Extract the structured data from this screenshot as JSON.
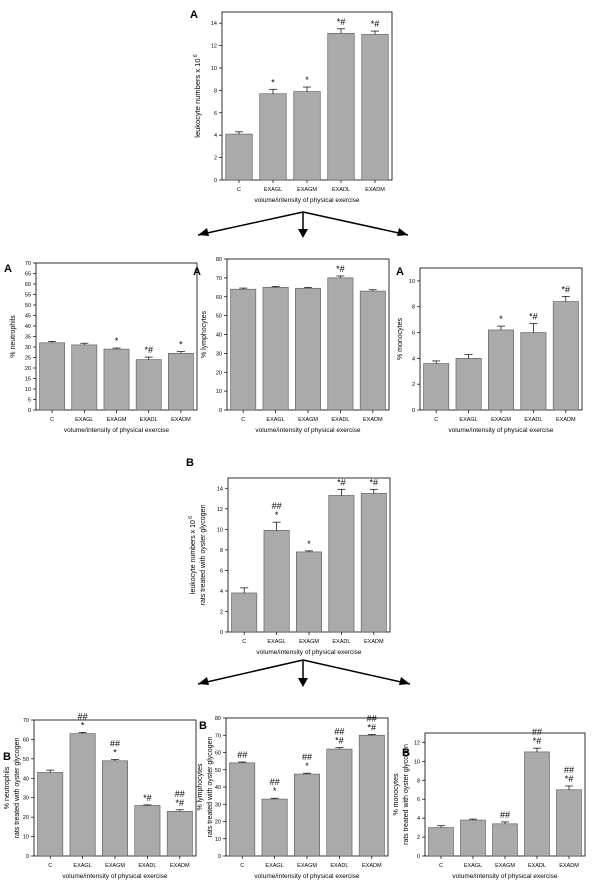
{
  "chart_data": [
    {
      "type": "bar",
      "panel_label": "A",
      "title": "",
      "ylabel": "leukocyte numbers x 10",
      "ylabel_exp": "6",
      "xlabel": "volume/intensity of physical exercise",
      "categories": [
        "C",
        "EXAGL",
        "EXAGM",
        "EXADL",
        "EXADM"
      ],
      "values": [
        4.1,
        7.7,
        7.9,
        13.1,
        13.0
      ],
      "errors": [
        0.2,
        0.4,
        0.4,
        0.4,
        0.3
      ],
      "annotations": [
        "",
        "*",
        "*",
        "*#",
        "*#"
      ],
      "ylim": [
        0,
        15
      ],
      "yticks": [
        "0",
        "2",
        "4",
        "6",
        "8",
        "10",
        "12",
        "14"
      ]
    },
    {
      "type": "bar",
      "panel_label": "A",
      "title": "",
      "ylabel": "% neutrophils",
      "xlabel": "volume/intensity of physical exercise",
      "categories": [
        "C",
        "EXAGL",
        "EXAGM",
        "EXADL",
        "EXADM"
      ],
      "values": [
        32,
        31,
        29,
        24,
        27
      ],
      "errors": [
        0.6,
        0.8,
        0.5,
        1.2,
        0.8
      ],
      "annotations": [
        "",
        "",
        "*",
        "*#",
        "*"
      ],
      "ylim": [
        0,
        70
      ],
      "yticks": [
        "0",
        "5",
        "10",
        "15",
        "20",
        "25",
        "30",
        "35",
        "40",
        "45",
        "50",
        "55",
        "60",
        "65",
        "70"
      ]
    },
    {
      "type": "bar",
      "panel_label": "A",
      "title": "",
      "ylabel": "% lymphocytes",
      "xlabel": "volume/intensity of physical exercise",
      "categories": [
        "C",
        "EXAGL",
        "EXAGM",
        "EXADL",
        "EXADM"
      ],
      "values": [
        64,
        65,
        64.5,
        70,
        63
      ],
      "errors": [
        0.6,
        0.5,
        0.5,
        1.0,
        0.7
      ],
      "annotations": [
        "",
        "",
        "",
        "*#",
        ""
      ],
      "ylim": [
        0,
        80
      ],
      "yticks": [
        "0",
        "10",
        "20",
        "30",
        "40",
        "50",
        "60",
        "70",
        "80"
      ]
    },
    {
      "type": "bar",
      "panel_label": "A",
      "title": "",
      "ylabel": "% monocytes",
      "xlabel": "volume/intensity of physical exercise",
      "categories": [
        "C",
        "EXAGL",
        "EXAGM",
        "EXADL",
        "EXADM"
      ],
      "values": [
        3.6,
        4.0,
        6.2,
        6.0,
        8.4
      ],
      "errors": [
        0.2,
        0.3,
        0.3,
        0.7,
        0.4
      ],
      "annotations": [
        "",
        "",
        "*",
        "*#",
        "*#"
      ],
      "ylim": [
        0,
        11
      ],
      "yticks": [
        "0",
        "2",
        "4",
        "6",
        "8",
        "10"
      ]
    },
    {
      "type": "bar",
      "panel_label": "B",
      "title": "",
      "ylabel": "leukocyte numbers x 10",
      "ylabel_exp": "6",
      "ylabel2": "rats treated with oyster glycogen",
      "xlabel": "volume/intensity of physical exercise",
      "categories": [
        "C",
        "EXAGL",
        "EXAGM",
        "EXADL",
        "EXADM"
      ],
      "values": [
        3.8,
        9.9,
        7.8,
        13.3,
        13.5
      ],
      "errors": [
        0.5,
        0.8,
        0.1,
        0.6,
        0.4
      ],
      "annotations": [
        "",
        "##\n*",
        "*",
        "*#",
        "*#"
      ],
      "ylim": [
        0,
        15
      ],
      "yticks": [
        "0",
        "2",
        "4",
        "6",
        "8",
        "10",
        "12",
        "14"
      ]
    },
    {
      "type": "bar",
      "panel_label": "B",
      "title": "",
      "ylabel": "% neutrophils",
      "ylabel2": "rats treated with oyster glycogen",
      "xlabel": "volume/intensity of physical exercise",
      "categories": [
        "C",
        "EXAGL",
        "EXAGM",
        "EXADL",
        "EXADM"
      ],
      "values": [
        43,
        63,
        49,
        26,
        23
      ],
      "errors": [
        1.2,
        0.6,
        0.6,
        0.3,
        0.8
      ],
      "annotations": [
        "",
        "##\n*",
        "##\n*",
        "*#",
        "##\n*#"
      ],
      "ylim": [
        0,
        70
      ],
      "yticks": [
        "0",
        "10",
        "20",
        "30",
        "40",
        "50",
        "60",
        "70"
      ]
    },
    {
      "type": "bar",
      "panel_label": "B",
      "title": "",
      "ylabel": "% lymphocytes",
      "ylabel2": "rats treated with oyster glycogen",
      "xlabel": "volume/intensity of physical exercise",
      "categories": [
        "C",
        "EXAGL",
        "EXAGM",
        "EXADL",
        "EXADM"
      ],
      "values": [
        54,
        33,
        47.5,
        62,
        70
      ],
      "errors": [
        0.5,
        0.5,
        0.5,
        0.8,
        0.5
      ],
      "annotations": [
        "##",
        "##\n*",
        "##\n*",
        "##\n*#",
        "##\n*#"
      ],
      "ylim": [
        0,
        80
      ],
      "yticks": [
        "0",
        "10",
        "20",
        "30",
        "40",
        "50",
        "60",
        "70",
        "80"
      ]
    },
    {
      "type": "bar",
      "panel_label": "B",
      "title": "",
      "ylabel": "% monocytes",
      "ylabel2": "rats treated with oyster glycogen",
      "xlabel": "volume/intensity of physical exercise",
      "categories": [
        "C",
        "EXAGL",
        "EXAGM",
        "EXADL",
        "EXADM"
      ],
      "values": [
        3.0,
        3.8,
        3.4,
        11.0,
        7.0
      ],
      "errors": [
        0.2,
        0.1,
        0.2,
        0.4,
        0.4
      ],
      "annotations": [
        "",
        "",
        "##",
        "##\n*#",
        "##\n*#"
      ],
      "ylim": [
        0,
        13
      ],
      "yticks": [
        "0",
        "2",
        "4",
        "6",
        "8",
        "10",
        "12"
      ]
    }
  ]
}
